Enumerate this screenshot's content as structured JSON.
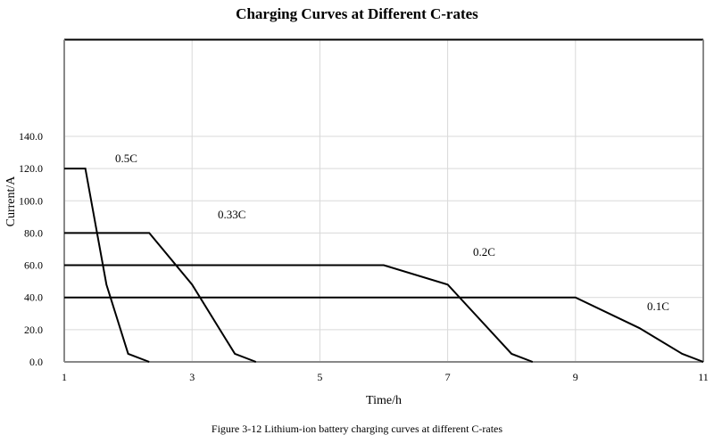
{
  "chart_data": {
    "type": "line",
    "title": "Charging Curves at Different C-rates",
    "xlabel": "Time/h",
    "ylabel": "Current/A",
    "xlim": [
      1,
      11
    ],
    "ylim": [
      0,
      200
    ],
    "x_ticks": [
      1,
      3,
      5,
      7,
      9,
      11
    ],
    "y_ticks": [
      "0.0",
      "20.0",
      "40.0",
      "60.0",
      "80.0",
      "100.0",
      "120.0",
      "140.0"
    ],
    "grid": true,
    "series": [
      {
        "name": "0.5C",
        "x": [
          1,
          1.33,
          1.66,
          2,
          2.33
        ],
        "y": [
          120,
          120,
          48,
          5,
          0
        ]
      },
      {
        "name": "0.33C",
        "x": [
          1,
          2.33,
          3,
          3.67,
          4
        ],
        "y": [
          80,
          80,
          48,
          5,
          0
        ]
      },
      {
        "name": "0.2C",
        "x": [
          1,
          6,
          7,
          8,
          8.33
        ],
        "y": [
          60,
          60,
          48,
          5,
          0
        ]
      },
      {
        "name": "0.1C",
        "x": [
          1,
          9,
          10,
          10.67,
          11
        ],
        "y": [
          40,
          40,
          21,
          5,
          0
        ]
      }
    ],
    "caption": "Figure 3-12 Lithium-ion battery charging curves at different C-rates"
  }
}
